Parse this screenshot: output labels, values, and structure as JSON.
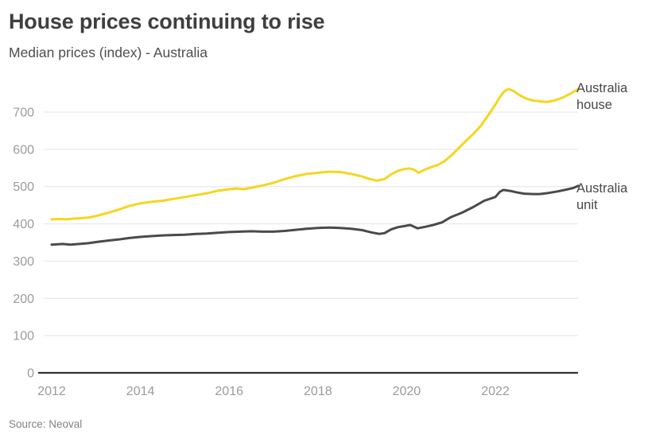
{
  "header": {
    "title": "House prices continuing to rise",
    "subtitle": "Median prices (index) - Australia"
  },
  "footer": {
    "source": "Source: Neoval"
  },
  "colors": {
    "house_line": "#f5d61e",
    "unit_line": "#4a4a4a",
    "axis_line": "#333333",
    "gridline": "#e4e4e4",
    "tick_label": "#9b9b9b",
    "title_text": "#3f3f3f",
    "label_text": "#474747"
  },
  "chart_data": {
    "type": "line",
    "title": "House prices continuing to rise",
    "subtitle": "Median prices (index) - Australia",
    "xlabel": "",
    "ylabel": "",
    "grid": "horizontal-only",
    "legend_position": "labels-at-line-ends-right",
    "x_ticks": [
      2012,
      2014,
      2016,
      2018,
      2020,
      2022
    ],
    "y_ticks": [
      0,
      100,
      200,
      300,
      400,
      500,
      600,
      700
    ],
    "xlim": [
      2011.7,
      2023.95
    ],
    "ylim": [
      0,
      780
    ],
    "series": [
      {
        "name": "Australia house",
        "color": "#f5d61e",
        "x": [
          2012.0,
          2012.17,
          2012.33,
          2012.5,
          2012.67,
          2012.83,
          2013.0,
          2013.25,
          2013.5,
          2013.75,
          2014.0,
          2014.25,
          2014.5,
          2014.75,
          2015.0,
          2015.25,
          2015.5,
          2015.75,
          2016.0,
          2016.17,
          2016.33,
          2016.5,
          2016.75,
          2017.0,
          2017.25,
          2017.5,
          2017.75,
          2018.0,
          2018.25,
          2018.5,
          2018.75,
          2019.0,
          2019.17,
          2019.33,
          2019.5,
          2019.65,
          2019.8,
          2019.95,
          2020.06,
          2020.16,
          2020.27,
          2020.4,
          2020.55,
          2020.7,
          2020.85,
          2021.0,
          2021.17,
          2021.33,
          2021.5,
          2021.67,
          2021.83,
          2022.0,
          2022.1,
          2022.2,
          2022.3,
          2022.42,
          2022.55,
          2022.7,
          2022.85,
          2023.0,
          2023.17,
          2023.33,
          2023.5,
          2023.67,
          2023.87
        ],
        "values": [
          412,
          413,
          412,
          414,
          415,
          417,
          421,
          429,
          438,
          448,
          455,
          459,
          462,
          467,
          472,
          477,
          482,
          489,
          493,
          495,
          493,
          497,
          503,
          510,
          520,
          528,
          534,
          537,
          540,
          539,
          534,
          527,
          520,
          516,
          520,
          533,
          542,
          547,
          549,
          546,
          537,
          545,
          552,
          558,
          568,
          583,
          603,
          622,
          641,
          663,
          690,
          720,
          740,
          756,
          762,
          756,
          745,
          736,
          731,
          729,
          727,
          731,
          738,
          748,
          762
        ]
      },
      {
        "name": "Australia unit",
        "color": "#4a4a4a",
        "x": [
          2012.0,
          2012.25,
          2012.42,
          2012.62,
          2012.83,
          2013.0,
          2013.25,
          2013.5,
          2013.75,
          2014.0,
          2014.25,
          2014.5,
          2014.75,
          2015.0,
          2015.25,
          2015.5,
          2015.75,
          2016.0,
          2016.25,
          2016.5,
          2016.75,
          2017.0,
          2017.25,
          2017.5,
          2017.75,
          2018.0,
          2018.25,
          2018.5,
          2018.75,
          2019.0,
          2019.2,
          2019.38,
          2019.5,
          2019.65,
          2019.8,
          2020.0,
          2020.08,
          2020.25,
          2020.42,
          2020.6,
          2020.8,
          2021.0,
          2021.25,
          2021.5,
          2021.75,
          2022.0,
          2022.1,
          2022.18,
          2022.35,
          2022.5,
          2022.65,
          2022.85,
          2023.0,
          2023.2,
          2023.4,
          2023.6,
          2023.75,
          2023.87
        ],
        "values": [
          344,
          346,
          344,
          346,
          348,
          351,
          355,
          358,
          362,
          365,
          367,
          369,
          370,
          371,
          373,
          374,
          376,
          378,
          379,
          380,
          379,
          379,
          381,
          384,
          387,
          389,
          390,
          389,
          387,
          383,
          377,
          373,
          375,
          385,
          391,
          395,
          397,
          388,
          392,
          397,
          404,
          418,
          430,
          445,
          462,
          472,
          486,
          491,
          488,
          484,
          481,
          480,
          480,
          483,
          487,
          492,
          496,
          502
        ]
      }
    ]
  }
}
